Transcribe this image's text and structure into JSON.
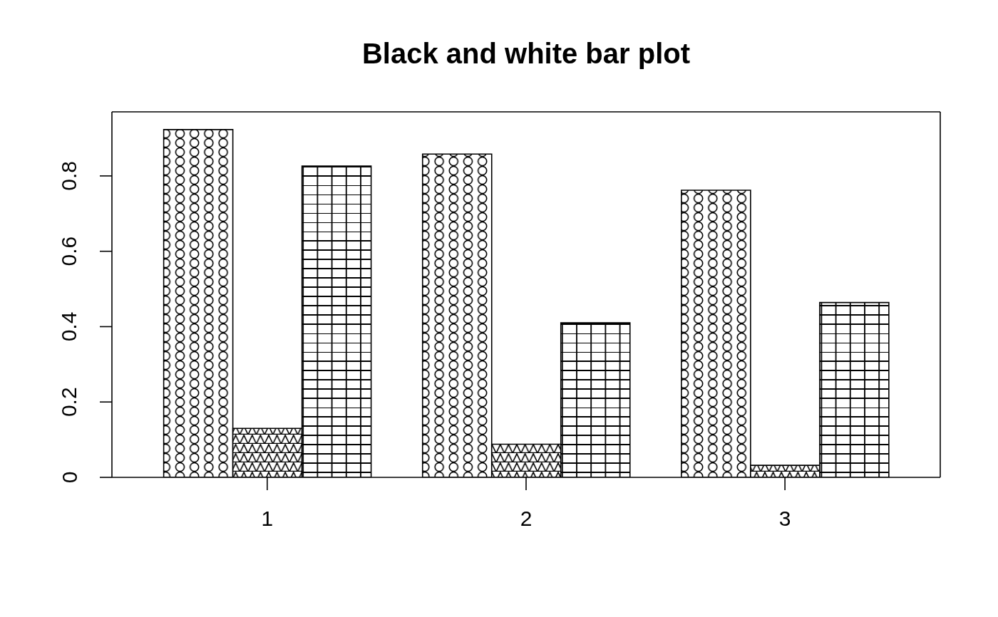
{
  "chart_data": {
    "type": "bar",
    "title": "Black and white bar plot",
    "categories": [
      "1",
      "2",
      "3"
    ],
    "series": [
      {
        "color": "#000000",
        "values": [
          0.923,
          0.858,
          0.762
        ]
      },
      {
        "color": "#000000",
        "values": [
          0.13,
          0.088,
          0.032
        ]
      },
      {
        "color": "#000000",
        "values": [
          0.826,
          0.41,
          0.464
        ]
      }
    ],
    "ylim": [
      0,
      0.97
    ],
    "yticks": [
      0,
      0.2,
      0.4,
      0.6,
      0.8
    ]
  }
}
